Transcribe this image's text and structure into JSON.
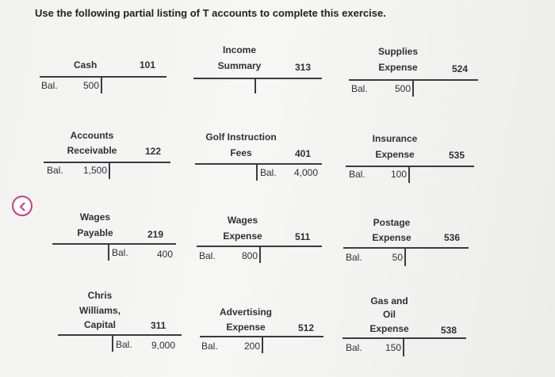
{
  "instructions": "Use the following partial listing of T accounts to complete this exercise.",
  "accounts": {
    "cash": {
      "name": "Cash",
      "number": "101",
      "bal_label": "Bal.",
      "debit": "500"
    },
    "income_summary": {
      "name_line1": "Income",
      "name_line2": "Summary",
      "number": "313"
    },
    "supplies_expense": {
      "name_line1": "Supplies",
      "name_line2": "Expense",
      "number": "524",
      "bal_label": "Bal.",
      "debit": "500"
    },
    "accounts_receivable": {
      "name_line1": "Accounts",
      "name_line2": "Receivable",
      "number": "122",
      "bal_label": "Bal.",
      "debit": "1,500"
    },
    "golf_instruction_fees": {
      "name_line1": "Golf Instruction",
      "name_line2": "Fees",
      "number": "401",
      "bal_label": "Bal.",
      "credit": "4,000"
    },
    "insurance_expense": {
      "name_line1": "Insurance",
      "name_line2": "Expense",
      "number": "535",
      "bal_label": "Bal.",
      "debit": "100"
    },
    "wages_payable": {
      "name_line1": "Wages",
      "name_line2": "Payable",
      "number": "219",
      "bal_label": "Bal.",
      "credit": "400"
    },
    "wages_expense": {
      "name_line1": "Wages",
      "name_line2": "Expense",
      "number": "511",
      "bal_label": "Bal.",
      "debit": "800"
    },
    "postage_expense": {
      "name_line1": "Postage",
      "name_line2": "Expense",
      "number": "536",
      "bal_label": "Bal.",
      "debit": "50"
    },
    "chris_williams_capital": {
      "name_line1": "Chris",
      "name_line2": "Williams,",
      "name_line3": "Capital",
      "number": "311",
      "bal_label": "Bal.",
      "credit": "9,000"
    },
    "advertising_expense": {
      "name_line1": "Advertising",
      "name_line2": "Expense",
      "number": "512",
      "bal_label": "Bal.",
      "debit": "200"
    },
    "gas_and_oil_expense": {
      "name_line1": "Gas and",
      "name_line2": "Oil",
      "name_line3": "Expense",
      "number": "538",
      "bal_label": "Bal.",
      "debit": "150"
    }
  },
  "icons": {
    "back": "chevron-left-icon",
    "accent_color": "#c93c82"
  }
}
